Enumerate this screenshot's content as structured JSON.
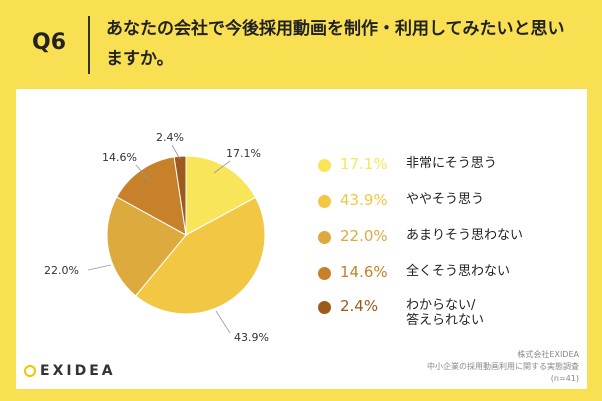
{
  "header": {
    "q_label": "Q6",
    "question": "あなたの会社で今後採用動画を制作・利用してみたいと思いますか。"
  },
  "chart_data": {
    "type": "pie",
    "title": "あなたの会社で今後採用動画を制作・利用してみたいと思いますか。",
    "categories": [
      "非常にそう思う",
      "ややそう思う",
      "あまりそう思わない",
      "全くそう思わない",
      "わからない/答えられない"
    ],
    "values": [
      17.1,
      43.9,
      22.0,
      14.6,
      2.4
    ],
    "value_labels": [
      "17.1%",
      "43.9%",
      "22.0%",
      "14.6%",
      "2.4%"
    ],
    "colors": [
      "#f9e55a",
      "#f2c744",
      "#ddaa3e",
      "#c6812a",
      "#9c5a1c"
    ],
    "legend_placement": "right"
  },
  "legend": {
    "items": [
      {
        "pct": "17.1%",
        "label_line1": "非常にそう思う",
        "label_line2": ""
      },
      {
        "pct": "43.9%",
        "label_line1": "ややそう思う",
        "label_line2": ""
      },
      {
        "pct": "22.0%",
        "label_line1": "あまりそう思わない",
        "label_line2": ""
      },
      {
        "pct": "14.6%",
        "label_line1": "全くそう思わない",
        "label_line2": ""
      },
      {
        "pct": "2.4%",
        "label_line1": "わからない/",
        "label_line2": "答えられない"
      }
    ]
  },
  "brand": {
    "logo_text": "EXIDEA",
    "accent": "#f2c400"
  },
  "footer": {
    "company": "株式会社EXIDEA",
    "survey": "中小企業の採用動画利用に関する実態調査",
    "sample": "(n=41)"
  }
}
